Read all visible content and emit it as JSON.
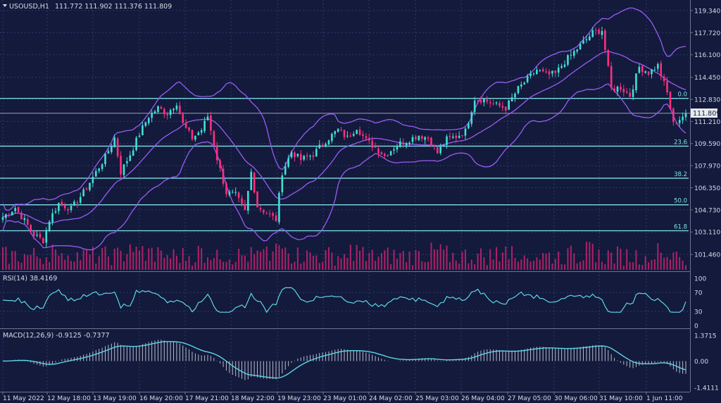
{
  "colors": {
    "background": "#131a3c",
    "grid": "#2b3a6d",
    "text": "#d8dbe6",
    "bull": "#41dfd4",
    "bear": "#ff2e7e",
    "bollinger": "#9a5cf2",
    "fib": "#7fe0e6",
    "price_line": "#9aa3b2",
    "volume": "#c8256e",
    "rsi": "#5fd6e6",
    "macd_line": "#5fd6e6",
    "macd_hist": "#b8bcc8"
  },
  "header": {
    "symbol_label": "USOUSD,H1",
    "ohlc_label": "111.772 111.902 111.376 111.809"
  },
  "price_panel": {
    "current_price_label": "111.809",
    "current_price": 111.809,
    "y_ticks": [
      "119.340",
      "117.720",
      "116.100",
      "114.450",
      "112.830",
      "111.210",
      "109.590",
      "107.970",
      "106.350",
      "104.730",
      "103.110",
      "101.460"
    ],
    "fib_levels": [
      {
        "label": "0.0",
        "price": 112.9
      },
      {
        "label": "23.6",
        "price": 109.4
      },
      {
        "label": "38.2",
        "price": 107.05
      },
      {
        "label": "50.0",
        "price": 105.1
      },
      {
        "label": "61.8",
        "price": 103.2
      }
    ]
  },
  "rsi_panel": {
    "label": "RSI(14) 38.4169",
    "levels": [
      "100",
      "70",
      "30",
      "0"
    ]
  },
  "macd_panel": {
    "label": "MACD(12,26,9) -0.9125 -0.7377",
    "levels": [
      "1.3715",
      "0.00",
      "-1.4111"
    ]
  },
  "x_axis": {
    "labels": [
      "11 May 2022",
      "12 May 18:00",
      "13 May 19:00",
      "16 May 20:00",
      "17 May 21:00",
      "18 May 22:00",
      "19 May 23:00",
      "23 May 01:00",
      "24 May 02:00",
      "25 May 03:00",
      "26 May 04:00",
      "27 May 05:00",
      "30 May 06:00",
      "31 May 10:00",
      "1 Jun 11:00"
    ]
  },
  "chart_data": {
    "type": "candlestick",
    "symbol": "USOUSD",
    "timeframe": "H1",
    "y_range": [
      100.9,
      119.7
    ],
    "close_path_anchors": [
      [
        0,
        104.2
      ],
      [
        4,
        104.9
      ],
      [
        8,
        103.6
      ],
      [
        10,
        102.9
      ],
      [
        13,
        102.5
      ],
      [
        15,
        104.0
      ],
      [
        18,
        105.2
      ],
      [
        22,
        104.8
      ],
      [
        26,
        106.0
      ],
      [
        30,
        107.5
      ],
      [
        33,
        108.6
      ],
      [
        36,
        110.0
      ],
      [
        38,
        107.5
      ],
      [
        41,
        108.8
      ],
      [
        44,
        110.3
      ],
      [
        47,
        111.6
      ],
      [
        50,
        112.2
      ],
      [
        53,
        111.8
      ],
      [
        56,
        112.6
      ],
      [
        58,
        111.0
      ],
      [
        61,
        110.0
      ],
      [
        64,
        110.6
      ],
      [
        66,
        111.6
      ],
      [
        69,
        108.5
      ],
      [
        72,
        106.0
      ],
      [
        75,
        105.8
      ],
      [
        78,
        104.6
      ],
      [
        80,
        107.5
      ],
      [
        82,
        105.0
      ],
      [
        85,
        104.5
      ],
      [
        88,
        104.0
      ],
      [
        90,
        107.5
      ],
      [
        93,
        109.0
      ],
      [
        96,
        108.4
      ],
      [
        100,
        108.8
      ],
      [
        104,
        109.8
      ],
      [
        108,
        110.6
      ],
      [
        111,
        110.0
      ],
      [
        114,
        110.8
      ],
      [
        117,
        109.8
      ],
      [
        120,
        109.3
      ],
      [
        123,
        108.7
      ],
      [
        127,
        109.5
      ],
      [
        130,
        109.8
      ],
      [
        134,
        110.2
      ],
      [
        137,
        110.0
      ],
      [
        140,
        108.9
      ],
      [
        143,
        109.9
      ],
      [
        146,
        110.1
      ],
      [
        149,
        110.5
      ],
      [
        152,
        112.9
      ],
      [
        155,
        112.8
      ],
      [
        159,
        112.4
      ],
      [
        162,
        112.2
      ],
      [
        166,
        113.6
      ],
      [
        169,
        114.3
      ],
      [
        172,
        115.0
      ],
      [
        175,
        114.6
      ],
      [
        178,
        114.7
      ],
      [
        181,
        115.6
      ],
      [
        184,
        116.3
      ],
      [
        187,
        117.0
      ],
      [
        190,
        117.7
      ],
      [
        193,
        117.9
      ],
      [
        196,
        113.6
      ],
      [
        199,
        113.7
      ],
      [
        202,
        113.1
      ],
      [
        205,
        115.2
      ],
      [
        208,
        114.8
      ],
      [
        211,
        115.3
      ],
      [
        214,
        113.3
      ],
      [
        216,
        111.0
      ],
      [
        218,
        111.4
      ],
      [
        220,
        111.8
      ]
    ]
  }
}
